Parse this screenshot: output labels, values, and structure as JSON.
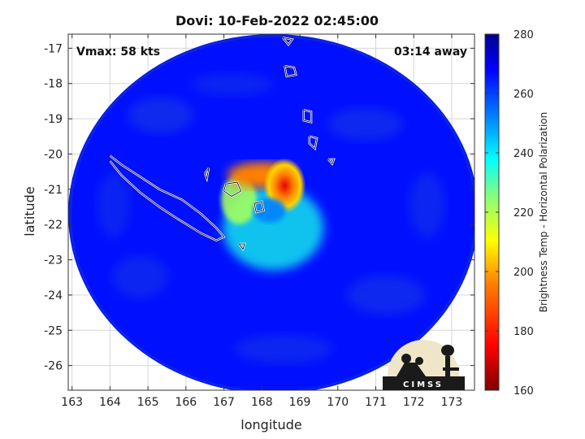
{
  "chart_data": {
    "type": "heatmap",
    "title": "Dovi: 10-Feb-2022 02:45:00",
    "xlabel": "longitude",
    "ylabel": "latitude",
    "xlim": [
      162.9,
      173.6
    ],
    "ylim": [
      -26.7,
      -16.6
    ],
    "xticks": [
      163,
      164,
      165,
      166,
      167,
      168,
      169,
      170,
      171,
      172,
      173
    ],
    "yticks": [
      -17,
      -18,
      -19,
      -20,
      -21,
      -22,
      -23,
      -24,
      -25,
      -26
    ],
    "grid": true,
    "colorbar": {
      "label": "Brightness Temp - Horizontal Polarization",
      "range": [
        160,
        280
      ],
      "ticks": [
        160,
        180,
        200,
        220,
        240,
        260,
        280
      ],
      "colormap": [
        "#7f0000",
        "#ff0000",
        "#ff8000",
        "#ffff00",
        "#80ff80",
        "#00ffff",
        "#0080ff",
        "#0000ff",
        "#00008f"
      ]
    },
    "swath": {
      "center": [
        168.3,
        -21.7
      ],
      "radius_deg_lon": 5.4,
      "radius_deg_lat": 5.1,
      "background_value": 266
    },
    "features": [
      {
        "name": "cold core",
        "center": [
          168.6,
          -20.9
        ],
        "value": 188
      },
      {
        "name": "northern band",
        "center": [
          168.0,
          -20.6
        ],
        "value": 196
      },
      {
        "name": "western arc",
        "center": [
          167.4,
          -21.3
        ],
        "value": 222
      },
      {
        "name": "southern ring",
        "center": [
          168.3,
          -22.1
        ],
        "value": 236
      },
      {
        "name": "eye",
        "center": [
          168.2,
          -21.6
        ],
        "value": 252
      }
    ],
    "annotations": {
      "vmax": "Vmax: 58 kts",
      "away": "03:14 away"
    }
  },
  "logo": {
    "text": "CIMSS"
  }
}
